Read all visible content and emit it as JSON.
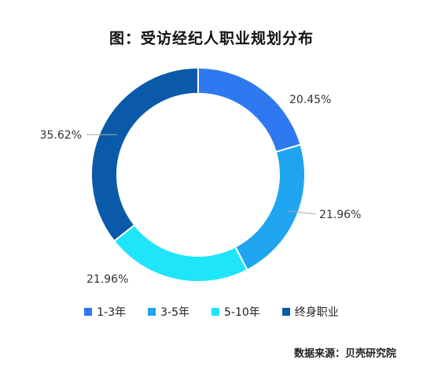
{
  "title": "图：受访经纪人职业规划分布",
  "source": "数据来源：贝壳研究院",
  "chart_data": {
    "type": "pie",
    "subtype": "donut",
    "categories": [
      "1-3年",
      "3-5年",
      "5-10年",
      "终身职业"
    ],
    "values": [
      20.45,
      21.96,
      21.96,
      35.62
    ],
    "labels": [
      "20.45%",
      "21.96%",
      "21.96%",
      "35.62%"
    ],
    "colors": [
      "#2f79f0",
      "#1fa5f0",
      "#1fe5f9",
      "#0b59a9"
    ],
    "legend_position": "bottom"
  }
}
